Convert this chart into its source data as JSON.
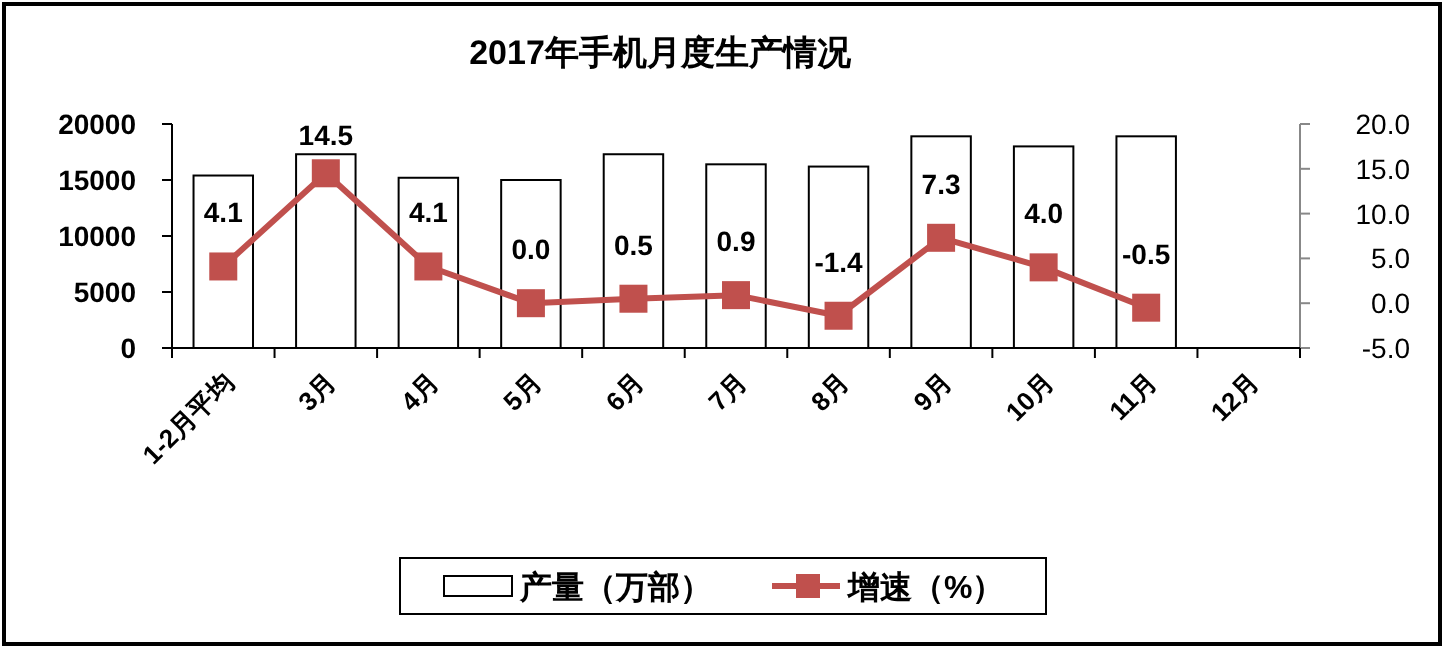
{
  "chart_data": {
    "type": "bar",
    "title": "2017年手机月度生产情况",
    "categories": [
      "1-2月平均",
      "3月",
      "4月",
      "5月",
      "6月",
      "7月",
      "8月",
      "9月",
      "10月",
      "11月",
      "12月"
    ],
    "series": [
      {
        "name": "产量（万部）",
        "color": "#ffffff",
        "values": [
          15400,
          17300,
          15200,
          15000,
          17300,
          16400,
          16200,
          18900,
          18000,
          18900,
          null
        ]
      },
      {
        "name": "增速（%）",
        "type": "line",
        "axis": "y2",
        "color": "#c0504d",
        "values": [
          4.1,
          14.5,
          4.1,
          0.0,
          0.5,
          0.9,
          -1.4,
          7.3,
          4.0,
          -0.5,
          null
        ],
        "value_labels": [
          "4.1",
          "14.5",
          "4.1",
          "0.0",
          "0.5",
          "0.9",
          "-1.4",
          "7.3",
          "4.0",
          "-0.5",
          null
        ]
      }
    ],
    "ylim": [
      0,
      20000
    ],
    "yticks": [
      0,
      5000,
      10000,
      15000,
      20000
    ],
    "y2lim": [
      -5,
      20
    ],
    "y2ticks": [
      {
        "value": -5,
        "label": "-5.0"
      },
      {
        "value": 0,
        "label": "0.0"
      },
      {
        "value": 5,
        "label": "5.0"
      },
      {
        "value": 10,
        "label": "10.0"
      },
      {
        "value": 15,
        "label": "15.0"
      },
      {
        "value": 20,
        "label": "20.0"
      }
    ],
    "marker": "square",
    "line_style": "solid",
    "legend": "bottom",
    "grid": false
  }
}
